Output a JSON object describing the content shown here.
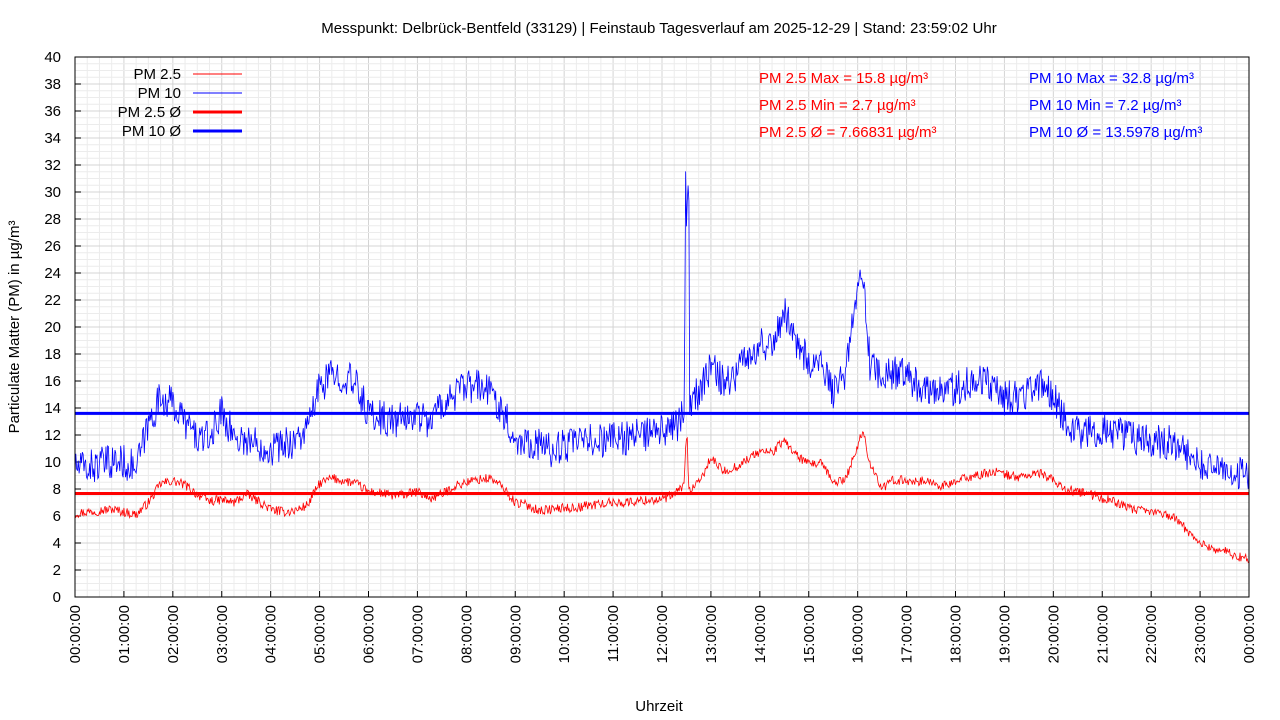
{
  "chart_data": {
    "type": "line",
    "title": "Messpunkt: Delbrück-Bentfeld (33129) | Feinstaub Tagesverlauf am 2025-12-29 | Stand: 23:59:02 Uhr",
    "xlabel": "Uhrzeit",
    "ylabel": "Particulate Matter (PM) in µg/m³",
    "ylim": [
      0,
      40
    ],
    "xlim": [
      "00:00:00",
      "24:00:00"
    ],
    "grid": true,
    "legend_position": "top-left",
    "y_ticks": [
      "0",
      "2",
      "4",
      "6",
      "8",
      "10",
      "12",
      "14",
      "16",
      "18",
      "20",
      "22",
      "24",
      "26",
      "28",
      "30",
      "32",
      "34",
      "36",
      "38",
      "40"
    ],
    "x_ticks": [
      "00:00:00",
      "01:00:00",
      "02:00:00",
      "03:00:00",
      "04:00:00",
      "05:00:00",
      "06:00:00",
      "07:00:00",
      "08:00:00",
      "09:00:00",
      "10:00:00",
      "11:00:00",
      "12:00:00",
      "13:00:00",
      "14:00:00",
      "15:00:00",
      "16:00:00",
      "17:00:00",
      "18:00:00",
      "19:00:00",
      "20:00:00",
      "21:00:00",
      "22:00:00",
      "23:00:00",
      "00:00:00"
    ],
    "x_hours": [
      0.0,
      0.25,
      0.5,
      0.75,
      1.0,
      1.25,
      1.5,
      1.75,
      2.0,
      2.25,
      2.5,
      2.75,
      3.0,
      3.25,
      3.5,
      3.75,
      4.0,
      4.25,
      4.5,
      4.75,
      5.0,
      5.25,
      5.5,
      5.75,
      6.0,
      6.25,
      6.5,
      6.75,
      7.0,
      7.25,
      7.5,
      7.75,
      8.0,
      8.25,
      8.5,
      8.75,
      9.0,
      9.25,
      9.5,
      9.75,
      10.0,
      10.25,
      10.5,
      10.75,
      11.0,
      11.25,
      11.5,
      11.75,
      12.0,
      12.25,
      12.45,
      12.5,
      12.55,
      12.75,
      13.0,
      13.25,
      13.5,
      13.75,
      14.0,
      14.25,
      14.5,
      14.75,
      15.0,
      15.25,
      15.5,
      15.75,
      16.0,
      16.1,
      16.25,
      16.5,
      16.75,
      17.0,
      17.25,
      17.5,
      17.75,
      18.0,
      18.25,
      18.5,
      18.75,
      19.0,
      19.25,
      19.5,
      19.75,
      20.0,
      20.25,
      20.5,
      20.75,
      21.0,
      21.25,
      21.5,
      21.75,
      22.0,
      22.25,
      22.5,
      22.75,
      23.0,
      23.25,
      23.5,
      23.75,
      24.0
    ],
    "series": [
      {
        "name": "PM 2.5",
        "color": "#ff0000",
        "values": [
          6.2,
          6.3,
          6.4,
          6.5,
          6.3,
          6.1,
          7.0,
          8.4,
          8.6,
          8.3,
          7.6,
          7.1,
          7.2,
          7.0,
          7.6,
          7.1,
          6.5,
          6.3,
          6.4,
          6.8,
          8.4,
          8.8,
          8.6,
          8.4,
          7.8,
          7.7,
          7.5,
          7.6,
          7.8,
          7.3,
          7.6,
          8.2,
          8.5,
          8.7,
          8.8,
          8.1,
          7.0,
          6.8,
          6.4,
          6.5,
          6.6,
          6.6,
          6.8,
          6.9,
          7.0,
          7.0,
          7.1,
          7.2,
          7.2,
          7.6,
          8.3,
          11.5,
          7.9,
          8.4,
          10.3,
          9.3,
          9.6,
          10.2,
          10.8,
          10.7,
          11.6,
          10.5,
          9.8,
          9.9,
          8.5,
          8.7,
          11.2,
          12.3,
          10.0,
          8.0,
          8.7,
          8.6,
          8.6,
          8.5,
          8.2,
          8.5,
          8.9,
          9.0,
          9.3,
          9.1,
          8.9,
          9.0,
          9.2,
          8.6,
          8.0,
          7.8,
          7.6,
          7.3,
          7.1,
          6.6,
          6.4,
          6.3,
          6.2,
          5.8,
          4.9,
          4.0,
          3.6,
          3.4,
          3.0,
          2.8
        ]
      },
      {
        "name": "PM 10",
        "color": "#0000ff",
        "values": [
          9.6,
          9.6,
          9.8,
          10.0,
          10.0,
          9.5,
          12.8,
          14.8,
          14.3,
          13.0,
          11.8,
          11.7,
          13.8,
          11.9,
          11.6,
          11.3,
          11.0,
          11.3,
          11.6,
          12.4,
          15.6,
          16.4,
          16.4,
          15.6,
          13.6,
          13.3,
          13.0,
          13.2,
          13.6,
          13.0,
          14.3,
          15.0,
          15.5,
          15.6,
          15.2,
          13.8,
          11.6,
          11.6,
          11.3,
          10.8,
          11.3,
          11.3,
          11.6,
          11.6,
          11.8,
          11.8,
          12.0,
          12.0,
          12.2,
          12.5,
          13.5,
          31.0,
          14.6,
          15.0,
          17.0,
          16.1,
          16.4,
          18.1,
          18.6,
          18.9,
          21.2,
          18.8,
          17.6,
          17.0,
          15.2,
          16.3,
          22.8,
          24.5,
          17.2,
          16.4,
          16.6,
          16.3,
          15.6,
          15.6,
          15.3,
          15.4,
          15.8,
          16.3,
          15.6,
          14.7,
          14.9,
          15.2,
          16.0,
          14.8,
          13.1,
          12.3,
          12.2,
          12.3,
          12.2,
          12.0,
          11.7,
          11.5,
          11.5,
          11.4,
          10.6,
          9.6,
          9.5,
          9.3,
          9.2,
          9.0
        ]
      }
    ],
    "averages": [
      {
        "name": "PM 2.5 Ø",
        "value": 7.66831,
        "color": "#ff0000"
      },
      {
        "name": "PM 10 Ø",
        "value": 13.5978,
        "color": "#0000ff"
      }
    ],
    "stats": {
      "pm25": [
        "PM 2.5 Max = 15.8 µg/m³",
        "PM 2.5 Min = 2.7 µg/m³",
        "PM 2.5 Ø = 7.66831 µg/m³"
      ],
      "pm10": [
        "PM 10 Max = 32.8 µg/m³",
        "PM 10 Min = 7.2 µg/m³",
        "PM 10 Ø = 13.5978 µg/m³"
      ]
    },
    "legend": [
      "PM 2.5",
      "PM 10",
      "PM 2.5 Ø",
      "PM 10 Ø"
    ]
  }
}
